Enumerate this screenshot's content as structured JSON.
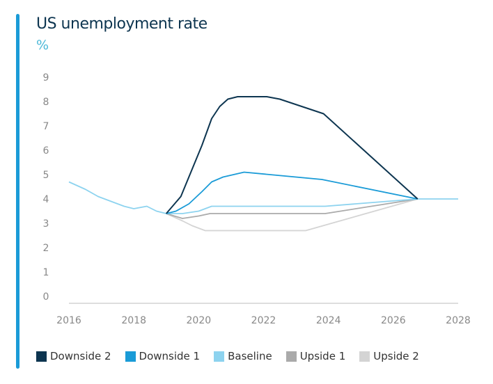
{
  "chart_data": {
    "type": "line",
    "title": "US unemployment rate",
    "ylabel": "%",
    "xlabel": "",
    "ylim": [
      0,
      9
    ],
    "xlim": [
      2016,
      2028
    ],
    "yticks": [
      "0",
      "1",
      "2",
      "3",
      "4",
      "5",
      "6",
      "7",
      "8",
      "9"
    ],
    "xticks": [
      "2016",
      "2018",
      "2020",
      "2022",
      "2024",
      "2026",
      "2028"
    ],
    "grid": false,
    "legend_position": "bottom",
    "series": [
      {
        "name": "Downside 2",
        "color": "#0d3550",
        "points": [
          [
            2019,
            3.4
          ],
          [
            2019.45,
            4.1
          ],
          [
            2020.1,
            6.2
          ],
          [
            2020.4,
            7.3
          ],
          [
            2020.65,
            7.8
          ],
          [
            2020.9,
            8.1
          ],
          [
            2021.2,
            8.2
          ],
          [
            2022.1,
            8.2
          ],
          [
            2022.5,
            8.1
          ],
          [
            2023.85,
            7.5
          ],
          [
            2026.75,
            4.0
          ]
        ]
      },
      {
        "name": "Downside 1",
        "color": "#1a9bd7",
        "points": [
          [
            2019,
            3.4
          ],
          [
            2019.3,
            3.5
          ],
          [
            2019.7,
            3.8
          ],
          [
            2020.1,
            4.3
          ],
          [
            2020.4,
            4.7
          ],
          [
            2020.75,
            4.9
          ],
          [
            2021.4,
            5.1
          ],
          [
            2023.8,
            4.8
          ],
          [
            2026.75,
            4.0
          ]
        ]
      },
      {
        "name": "Baseline",
        "color": "#8dd3ef",
        "points": [
          [
            2016,
            4.7
          ],
          [
            2016.5,
            4.4
          ],
          [
            2016.9,
            4.1
          ],
          [
            2017.3,
            3.9
          ],
          [
            2017.7,
            3.7
          ],
          [
            2018,
            3.6
          ],
          [
            2018.4,
            3.7
          ],
          [
            2018.7,
            3.5
          ],
          [
            2019,
            3.4
          ],
          [
            2019.5,
            3.4
          ],
          [
            2020,
            3.5
          ],
          [
            2020.4,
            3.7
          ],
          [
            2023.9,
            3.7
          ],
          [
            2026.75,
            4.0
          ],
          [
            2028,
            4.0
          ]
        ]
      },
      {
        "name": "Upside 1",
        "color": "#aaaaaa",
        "points": [
          [
            2019,
            3.4
          ],
          [
            2019.5,
            3.2
          ],
          [
            2020,
            3.3
          ],
          [
            2020.35,
            3.4
          ],
          [
            2023.9,
            3.4
          ],
          [
            2026.75,
            4.0
          ]
        ]
      },
      {
        "name": "Upside 2",
        "color": "#d4d4d4",
        "points": [
          [
            2019,
            3.4
          ],
          [
            2019.5,
            3.1
          ],
          [
            2019.8,
            2.9
          ],
          [
            2020.2,
            2.7
          ],
          [
            2023.3,
            2.7
          ],
          [
            2026.75,
            4.0
          ]
        ]
      }
    ]
  }
}
